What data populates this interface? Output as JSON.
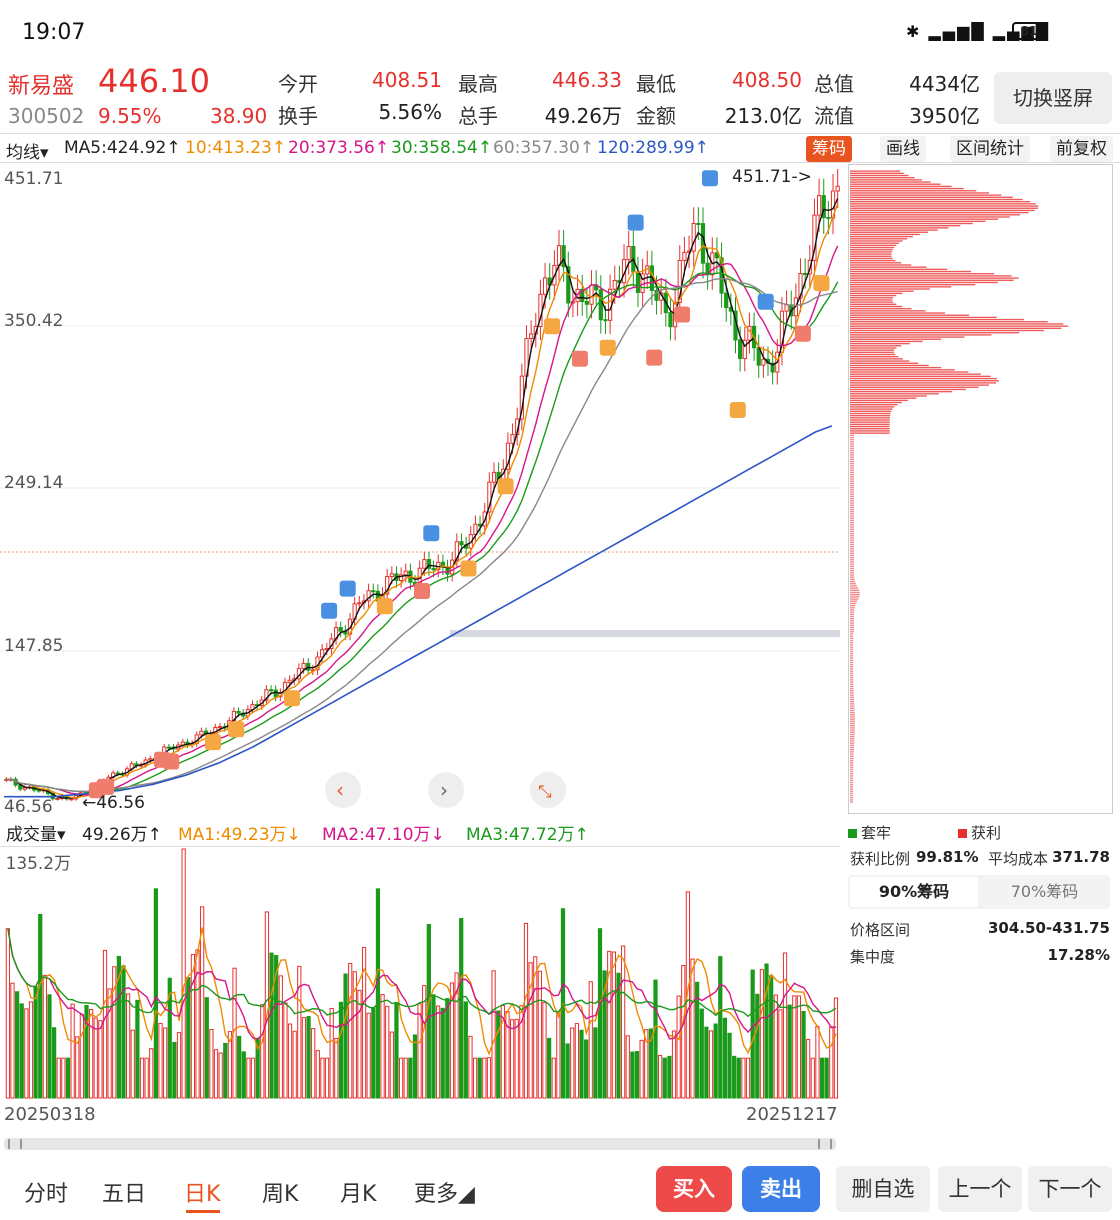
{
  "status": {
    "time": "19:07",
    "icons": "✱ ▂▄▆█ ▂▄▆█",
    "battery": "81"
  },
  "quote": {
    "name": "新易盛",
    "code": "300502",
    "price": "446.10",
    "pct": "9.55%",
    "change": "38.90",
    "open_label": "今开",
    "open": "408.51",
    "high_label": "最高",
    "high": "446.33",
    "low_label": "最低",
    "low": "408.50",
    "mktcap_label": "总值",
    "mktcap": "4434亿",
    "turnover_label": "换手",
    "turnover": "5.56%",
    "volume_label": "总手",
    "volume": "49.26万",
    "amount_label": "金额",
    "amount": "213.0亿",
    "float_label": "流值",
    "float": "3950亿",
    "switch_btn": "切换竖屏"
  },
  "ma_bar": {
    "selector": "均线▾",
    "ma5": "MA5:424.92↑",
    "ma10": "10:413.23↑",
    "ma20": "20:373.56↑",
    "ma30": "30:358.54↑",
    "ma60": "60:357.30↑",
    "ma120": "120:289.99↑",
    "tools": [
      "筹码",
      "画线",
      "区间统计",
      "前复权"
    ]
  },
  "colors": {
    "up": "#e5312d",
    "down": "#1a9a1a",
    "ma5": "#111111",
    "ma10": "#f08a00",
    "ma20": "#d6148b",
    "ma30": "#1a9a1a",
    "ma60": "#888888",
    "ma120": "#2a56c6"
  },
  "price_axis": [
    "451.71",
    "350.42",
    "249.14",
    "147.85",
    "46.56"
  ],
  "annotations": {
    "max_marker": "451.71->",
    "min_marker": "←46.56"
  },
  "volume_bar": {
    "label": "成交量▾",
    "current": "49.26万↑",
    "ma1": "MA1:49.23万↓",
    "ma2": "MA2:47.10万↓",
    "ma3": "MA3:47.72万↑",
    "max_label": "135.2万"
  },
  "dates": {
    "start": "20250318",
    "end": "20251217"
  },
  "chips_panel": {
    "legend_locked": "套牢",
    "legend_profit": "获利",
    "profit_ratio_label": "获利比例",
    "profit_ratio": "99.81%",
    "avg_cost_label": "平均成本",
    "avg_cost": "371.78",
    "tab_90": "90%筹码",
    "tab_70": "70%筹码",
    "range_label": "价格区间",
    "range": "304.50-431.75",
    "concentration_label": "集中度",
    "concentration": "17.28%"
  },
  "bottom_nav": {
    "tabs": [
      "分时",
      "五日",
      "日K",
      "周K",
      "月K",
      "更多◢"
    ],
    "buy": "买入",
    "sell": "卖出",
    "remove_watch": "删自选",
    "prev": "上一个",
    "next": "下一个"
  },
  "chart_data": {
    "type": "candlestick",
    "x_range": [
      "20250318",
      "20251217"
    ],
    "ylim": [
      46.56,
      451.71
    ],
    "close_series": [
      60,
      58,
      56,
      54,
      52,
      50,
      48,
      50,
      55,
      58,
      62,
      66,
      68,
      70,
      74,
      78,
      80,
      84,
      86,
      88,
      92,
      96,
      98,
      104,
      108,
      112,
      116,
      120,
      126,
      130,
      136,
      142,
      150,
      158,
      168,
      176,
      180,
      186,
      190,
      192,
      194,
      196,
      198,
      200,
      204,
      210,
      222,
      236,
      250,
      266,
      290,
      320,
      360,
      384,
      392,
      388,
      376,
      372,
      368,
      370,
      380,
      392,
      396,
      388,
      372,
      362,
      378,
      398,
      420,
      404,
      388,
      368,
      350,
      342,
      336,
      330,
      340,
      360,
      380,
      400,
      420,
      436,
      446.1
    ],
    "ma120_series": [
      50,
      50,
      50,
      50,
      51,
      52,
      53,
      54,
      56,
      58,
      61,
      64,
      68,
      72,
      77,
      82,
      88,
      94,
      100,
      106,
      112,
      118,
      124,
      130,
      136,
      142,
      148,
      154,
      160,
      166,
      172,
      178,
      184,
      190,
      196,
      202,
      208,
      214,
      220,
      226,
      232,
      238,
      244,
      250,
      256,
      262,
      268,
      274,
      280,
      286,
      289.99
    ],
    "volume_max": "135.2万"
  }
}
